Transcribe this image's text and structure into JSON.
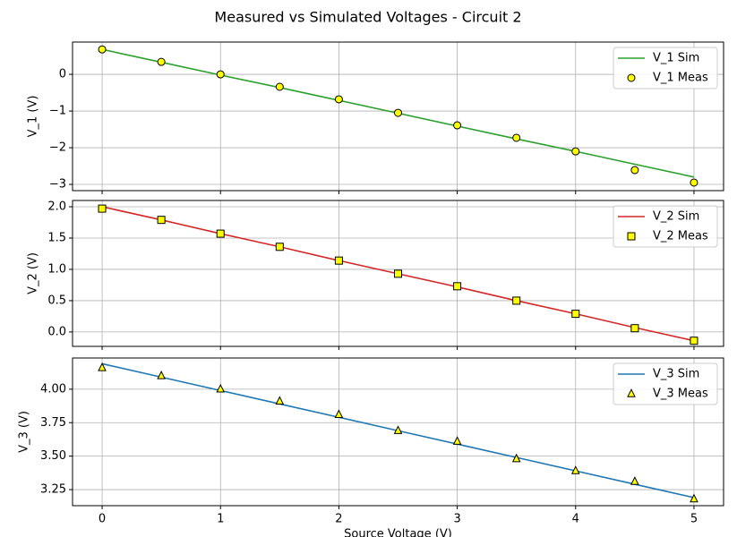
{
  "title": "Measured vs Simulated Voltages - Circuit 2",
  "chart_data": [
    {
      "type": "line",
      "ylabel": "V_1 (V)",
      "x": [
        0,
        0.5,
        1,
        1.5,
        2,
        2.5,
        3,
        3.5,
        4,
        4.5,
        5
      ],
      "series": [
        {
          "name": "V_1 Sim",
          "color": "#2ca02c",
          "values": [
            0.68,
            0.33,
            -0.02,
            -0.36,
            -0.71,
            -1.06,
            -1.41,
            -1.76,
            -2.1,
            -2.45,
            -2.8
          ]
        },
        {
          "name": "V_1 Meas",
          "color": "yellow",
          "edgecolor": "black",
          "marker": "o",
          "values": [
            0.68,
            0.34,
            0,
            -0.34,
            -0.68,
            -1.05,
            -1.39,
            -1.73,
            -2.1,
            -2.61,
            -2.95
          ]
        }
      ],
      "xlim": [
        -0.25,
        5.25
      ],
      "xticks": [
        0,
        1,
        2,
        3,
        4,
        5
      ],
      "ylim": [
        -3.17,
        0.88
      ],
      "yticks": [
        {
          "value": -3,
          "label": "−3"
        },
        {
          "value": -2,
          "label": "−2"
        },
        {
          "value": -1,
          "label": "−1"
        },
        0
      ],
      "grid": true,
      "legend": "upper right"
    },
    {
      "type": "line",
      "ylabel": "V_2 (V)",
      "x": [
        0,
        0.5,
        1,
        1.5,
        2,
        2.5,
        3,
        3.5,
        4,
        4.5,
        5
      ],
      "series": [
        {
          "name": "V_2 Sim",
          "color": "#d62728",
          "values": [
            2.0,
            1.79,
            1.57,
            1.36,
            1.14,
            0.93,
            0.72,
            0.5,
            0.29,
            0.07,
            -0.14
          ]
        },
        {
          "name": "V_2 Meas",
          "color": "yellow",
          "edgecolor": "black",
          "marker": "s",
          "values": [
            1.97,
            1.79,
            1.57,
            1.36,
            1.14,
            0.93,
            0.73,
            0.5,
            0.29,
            0.06,
            -0.14
          ]
        }
      ],
      "xlim": [
        -0.25,
        5.25
      ],
      "xticks": [
        0,
        1,
        2,
        3,
        4,
        5
      ],
      "ylim": [
        -0.23,
        2.1
      ],
      "yticks": [
        {
          "value": 0,
          "label": "0.0"
        },
        {
          "value": 0.5,
          "label": "0.5"
        },
        {
          "value": 1,
          "label": "1.0"
        },
        {
          "value": 1.5,
          "label": "1.5"
        },
        {
          "value": 2,
          "label": "2.0"
        }
      ],
      "grid": true,
      "legend": "upper right"
    },
    {
      "type": "line",
      "ylabel": "V_3 (V)",
      "xlabel": "Source Voltage (V)",
      "x": [
        0,
        0.5,
        1,
        1.5,
        2,
        2.5,
        3,
        3.5,
        4,
        4.5,
        5
      ],
      "series": [
        {
          "name": "V_3 Sim",
          "color": "#1f77b4",
          "values": [
            4.19,
            4.09,
            3.99,
            3.89,
            3.79,
            3.69,
            3.59,
            3.49,
            3.39,
            3.29,
            3.19
          ]
        },
        {
          "name": "V_3 Meas",
          "color": "yellow",
          "edgecolor": "black",
          "marker": "^",
          "values": [
            4.16,
            4.1,
            4.0,
            3.91,
            3.81,
            3.69,
            3.61,
            3.48,
            3.39,
            3.31,
            3.18
          ]
        }
      ],
      "xlim": [
        -0.25,
        5.25
      ],
      "xticks": [
        0,
        1,
        2,
        3,
        4,
        5
      ],
      "ylim": [
        3.13,
        4.233
      ],
      "yticks": [
        {
          "value": 3.25,
          "label": "3.25"
        },
        {
          "value": 3.5,
          "label": "3.50"
        },
        {
          "value": 3.75,
          "label": "3.75"
        },
        {
          "value": 4,
          "label": "4.00"
        }
      ],
      "grid": true,
      "legend": "upper right"
    }
  ]
}
